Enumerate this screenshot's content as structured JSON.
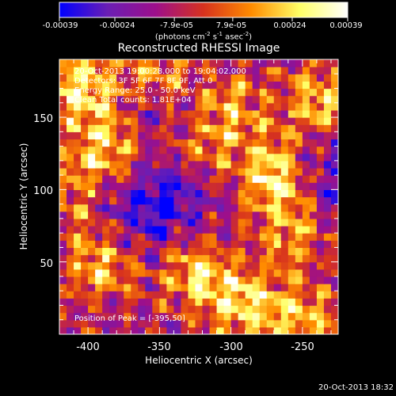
{
  "colorbar": {
    "ticks": [
      "-0.00039",
      "-0.00024",
      "-7.9e-05",
      "7.9e-05",
      "0.00024",
      "0.00039"
    ],
    "tick_values": [
      -0.00039,
      -0.00024,
      -7.9e-05,
      7.9e-05,
      0.00024,
      0.00039
    ],
    "range": [
      -0.00039,
      0.00039
    ],
    "units_parts": {
      "a": "(photons cm",
      "b": "-2",
      "c": " s",
      "d": "-1",
      "e": " asec",
      "f": "-2",
      "g": ")"
    },
    "stops": [
      "#0000ff",
      "#6a1eb4",
      "#9d0f8b",
      "#d7321e",
      "#ff8c00",
      "#ffff66",
      "#ffffff"
    ]
  },
  "chart_data": {
    "type": "heatmap",
    "title": "Reconstructed RHESSI Image",
    "xlabel": "Heliocentric X (arcsec)",
    "ylabel": "Heliocentric Y (arcsec)",
    "xlim": [
      -420,
      -225
    ],
    "ylim": [
      0,
      190
    ],
    "xticks": [
      -400,
      -350,
      -300,
      -250
    ],
    "yticks": [
      50,
      100,
      150
    ],
    "annotations": [
      "20-Oct-2013 19:00:28.000  to  19:04:02.000",
      "Detectors: 3F 5F 6F 7F 8F 9F, Att 0",
      "Energy Range: 25.0 - 50.0 keV",
      "Clean     Total counts: 1.81E+04"
    ],
    "peak_label": "Position of Peak = [-395,50]",
    "peak": [
      -395,
      50
    ],
    "hotspots": [
      {
        "x": -270,
        "y": 110,
        "amp": 1.0
      },
      {
        "x": -395,
        "y": 50,
        "amp": 1.0
      },
      {
        "x": -405,
        "y": 170,
        "amp": 0.9
      },
      {
        "x": -325,
        "y": 45,
        "amp": 0.8
      },
      {
        "x": -255,
        "y": 65,
        "amp": 0.85
      },
      {
        "x": -290,
        "y": 20,
        "amp": 0.85
      },
      {
        "x": -350,
        "y": 180,
        "amp": 0.7
      },
      {
        "x": -385,
        "y": 130,
        "amp": 0.75
      },
      {
        "x": -300,
        "y": 155,
        "amp": 0.7
      },
      {
        "x": -240,
        "y": 160,
        "amp": 0.75
      },
      {
        "x": -410,
        "y": 95,
        "amp": 0.6
      },
      {
        "x": -330,
        "y": 130,
        "amp": 0.55
      },
      {
        "x": -245,
        "y": 10,
        "amp": 0.7
      }
    ],
    "coldspots": [
      {
        "x": -350,
        "y": 90,
        "amp": 0.9
      },
      {
        "x": -345,
        "y": 155,
        "amp": 0.7
      },
      {
        "x": -405,
        "y": 65,
        "amp": 0.6
      },
      {
        "x": -240,
        "y": 120,
        "amp": 0.5
      },
      {
        "x": -250,
        "y": 60,
        "amp": 0.45
      }
    ]
  },
  "timestamp": "20-Oct-2013 18:32"
}
